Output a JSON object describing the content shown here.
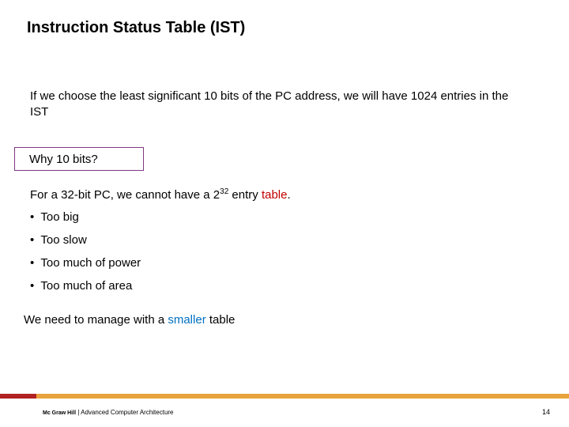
{
  "title": "Instruction Status Table (IST)",
  "paragraph1": "If we choose the least significant 10 bits of the PC address, we will have 1024 entries in the IST",
  "why_box": "Why 10 bits?",
  "paragraph2_prefix": "For a 32-bit PC, we cannot have a 2",
  "paragraph2_exp": "32",
  "paragraph2_mid": " entry ",
  "paragraph2_red": "table",
  "paragraph2_suffix": ".",
  "bullets": [
    "Too big",
    "Too slow",
    "Too much of power",
    "Too much of area"
  ],
  "paragraph3_prefix": "We need to manage with a ",
  "paragraph3_blue": "smaller",
  "paragraph3_suffix": " table",
  "footer_publisher": "Mc Graw Hill",
  "footer_separator": "  |  ",
  "footer_booktitle": "Advanced Computer Architecture",
  "page_number": "14",
  "colors": {
    "accent_red_text": "#c00000",
    "accent_blue_text": "#0070c0",
    "box_border": "#7e3a7e",
    "footer_bar": "#e8a33d",
    "footer_overlay": "#b22222",
    "background": "#ffffff",
    "text": "#000000"
  },
  "typography": {
    "title_fontsize": 20,
    "title_weight": "bold",
    "body_fontsize": 15,
    "footer_fontsize": 8,
    "font_family": "Arial"
  },
  "layout": {
    "slide_width": 720,
    "slide_height": 540,
    "footer_bar_height": 6
  }
}
